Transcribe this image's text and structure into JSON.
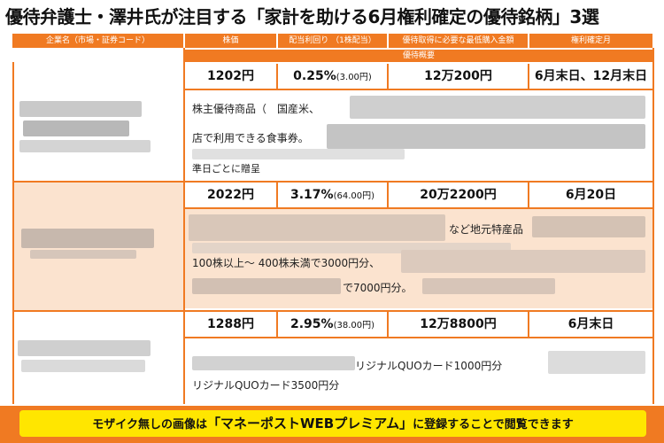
{
  "title": "優待弁護士・澤井氏が注目する「家計を助ける6月権利確定の優待銘柄」3選",
  "header": {
    "company": "企業名（市場・証券コード）",
    "price": "株価",
    "yield": "配当利回り （1株配当）",
    "min_invest": "優待取得に必要な最低購入金額",
    "record_month": "権利確定月",
    "summary": "優待概要"
  },
  "rows": [
    {
      "price": "1202円",
      "yield": "0.25%",
      "dividend": "(3.00円)",
      "min_invest": "12万200円",
      "record": "6月末日、12月末日",
      "desc": [
        "株主優待商品（　国産米、",
        "店で利用できる食事券。",
        "準日ごとに贈呈"
      ]
    },
    {
      "price": "2022円",
      "yield": "3.17%",
      "dividend": "(64.00円)",
      "min_invest": "20万2200円",
      "record": "6月20日",
      "desc": [
        "など地元特産品",
        "100株以上～ 400株未満で3000円分、",
        "で7000円分。"
      ]
    },
    {
      "price": "1288円",
      "yield": "2.95%",
      "dividend": "(38.00円)",
      "min_invest": "12万8800円",
      "record": "6月末日",
      "desc": [
        "リジナルQUOカード1000円分",
        "リジナルQUOカード3500円分"
      ]
    }
  ],
  "banner": {
    "before": "モザイク無しの画像は",
    "emphasis": "「マネーポストWEBプレミアム」",
    "after": "に登録することで閲覧できます"
  },
  "colors": {
    "accent": "#f07a22",
    "highlight": "#fbe3cf",
    "banner": "#ffe600"
  }
}
